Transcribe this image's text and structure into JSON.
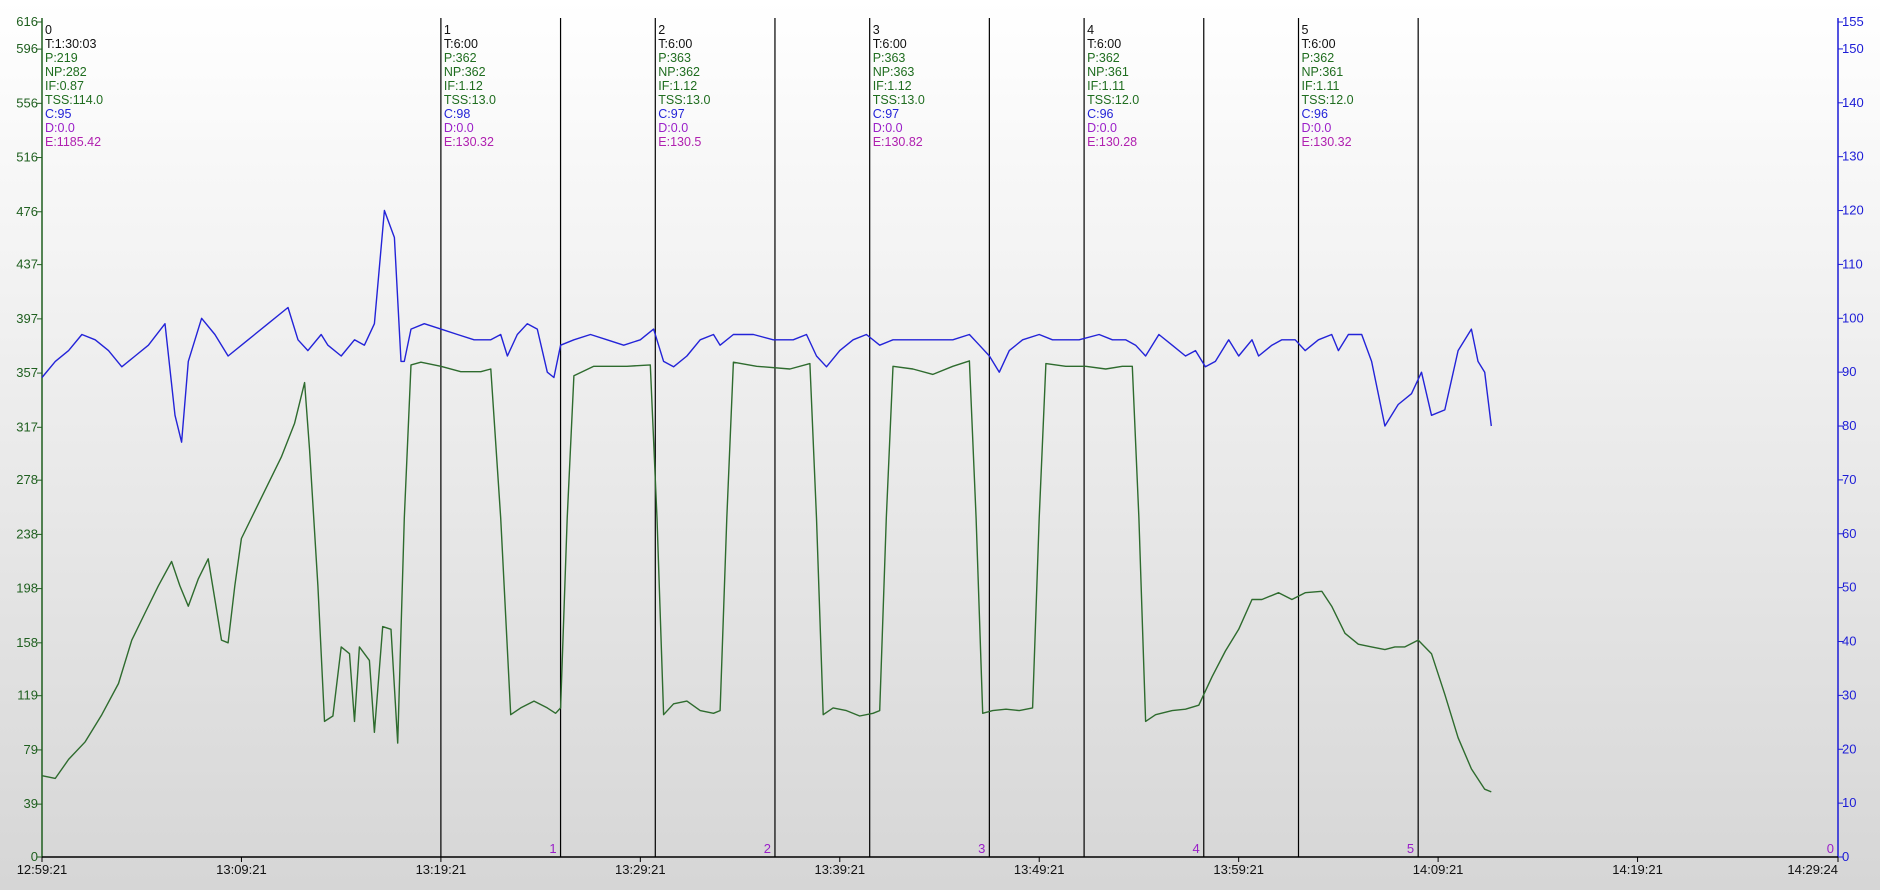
{
  "chart_data": {
    "type": "line",
    "title": "",
    "xlabel": "",
    "ylabel": "",
    "grid": false,
    "colors": {
      "power": "#2e6b2e",
      "cadence": "#2323d8",
      "marker": "#000000",
      "lap_number": "#9a1fc9",
      "speed_text": "#1f6d1f",
      "left_axis": "#1f5f1f",
      "right_axis": "#1c1cd6",
      "default_text": "#111111",
      "distance_text": "#9a1fc9",
      "energy_text": "#b020b0"
    },
    "x_axis": {
      "min_seconds": 0,
      "max_seconds": 5403,
      "tick_labels": [
        "12:59:21",
        "13:09:21",
        "13:19:21",
        "13:29:21",
        "13:39:21",
        "13:49:21",
        "13:59:21",
        "14:09:21",
        "14:19:21",
        "14:29:24"
      ],
      "tick_seconds": [
        0,
        600,
        1200,
        1800,
        2400,
        3000,
        3600,
        4200,
        4800,
        5403
      ]
    },
    "y_left": {
      "series": "Power",
      "range": [
        0,
        616
      ],
      "ticks": [
        0,
        39,
        79,
        119,
        158,
        198,
        238,
        278,
        317,
        357,
        397,
        437,
        476,
        516,
        556,
        596,
        616
      ]
    },
    "y_right": {
      "series": "Cadence",
      "range": [
        0,
        155
      ],
      "ticks": [
        0,
        10,
        20,
        30,
        40,
        50,
        60,
        70,
        80,
        90,
        100,
        110,
        120,
        130,
        140,
        150,
        155
      ]
    },
    "laps": [
      {
        "id": "0",
        "start": 0,
        "T": "T:1:30:03",
        "P": "P:219",
        "NP": "NP:282",
        "IF": "IF:0.87",
        "TSS": "TSS:114.0",
        "C": "C:95",
        "D": "D:0.0",
        "E": "E:1185.42"
      },
      {
        "id": "1",
        "start": 1200,
        "T": "T:6:00",
        "P": "P:362",
        "NP": "NP:362",
        "IF": "IF:1.12",
        "TSS": "TSS:13.0",
        "C": "C:98",
        "D": "D:0.0",
        "E": "E:130.32"
      },
      {
        "id": "2",
        "start": 1845,
        "T": "T:6:00",
        "P": "P:363",
        "NP": "NP:362",
        "IF": "IF:1.12",
        "TSS": "TSS:13.0",
        "C": "C:97",
        "D": "D:0.0",
        "E": "E:130.5"
      },
      {
        "id": "3",
        "start": 2490,
        "T": "T:6:00",
        "P": "P:363",
        "NP": "NP:363",
        "IF": "IF:1.12",
        "TSS": "TSS:13.0",
        "C": "C:97",
        "D": "D:0.0",
        "E": "E:130.82"
      },
      {
        "id": "4",
        "start": 3135,
        "T": "T:6:00",
        "P": "P:362",
        "NP": "NP:361",
        "IF": "IF:1.11",
        "TSS": "TSS:12.0",
        "C": "C:96",
        "D": "D:0.0",
        "E": "E:130.28"
      },
      {
        "id": "5",
        "start": 3780,
        "T": "T:6:00",
        "P": "P:362",
        "NP": "NP:361",
        "IF": "IF:1.11",
        "TSS": "TSS:12.0",
        "C": "C:96",
        "D": "D:0.0",
        "E": "E:130.32"
      }
    ],
    "lap_ends": [
      {
        "label": "1",
        "t": 1560
      },
      {
        "label": "2",
        "t": 2205
      },
      {
        "label": "3",
        "t": 2850
      },
      {
        "label": "4",
        "t": 3495
      },
      {
        "label": "5",
        "t": 4140
      },
      {
        "label": "0",
        "t": 5403
      }
    ],
    "series": [
      {
        "name": "Power",
        "axis": "left",
        "points": [
          [
            0,
            60
          ],
          [
            40,
            58
          ],
          [
            80,
            72
          ],
          [
            130,
            85
          ],
          [
            180,
            105
          ],
          [
            230,
            128
          ],
          [
            270,
            160
          ],
          [
            310,
            180
          ],
          [
            350,
            200
          ],
          [
            390,
            218
          ],
          [
            415,
            200
          ],
          [
            440,
            185
          ],
          [
            470,
            205
          ],
          [
            500,
            220
          ],
          [
            520,
            190
          ],
          [
            540,
            160
          ],
          [
            560,
            158
          ],
          [
            580,
            200
          ],
          [
            600,
            235
          ],
          [
            640,
            255
          ],
          [
            680,
            275
          ],
          [
            720,
            295
          ],
          [
            760,
            320
          ],
          [
            790,
            350
          ],
          [
            805,
            300
          ],
          [
            830,
            200
          ],
          [
            850,
            100
          ],
          [
            875,
            104
          ],
          [
            900,
            155
          ],
          [
            925,
            150
          ],
          [
            940,
            100
          ],
          [
            955,
            155
          ],
          [
            985,
            145
          ],
          [
            1000,
            92
          ],
          [
            1025,
            170
          ],
          [
            1050,
            168
          ],
          [
            1070,
            84
          ],
          [
            1090,
            250
          ],
          [
            1110,
            363
          ],
          [
            1140,
            365
          ],
          [
            1200,
            362
          ],
          [
            1260,
            358
          ],
          [
            1320,
            358
          ],
          [
            1350,
            360
          ],
          [
            1380,
            250
          ],
          [
            1410,
            105
          ],
          [
            1440,
            110
          ],
          [
            1480,
            115
          ],
          [
            1520,
            110
          ],
          [
            1545,
            106
          ],
          [
            1560,
            110
          ],
          [
            1580,
            250
          ],
          [
            1600,
            355
          ],
          [
            1660,
            362
          ],
          [
            1760,
            362
          ],
          [
            1830,
            363
          ],
          [
            1850,
            250
          ],
          [
            1870,
            105
          ],
          [
            1900,
            113
          ],
          [
            1940,
            115
          ],
          [
            1980,
            108
          ],
          [
            2020,
            106
          ],
          [
            2040,
            108
          ],
          [
            2060,
            250
          ],
          [
            2080,
            365
          ],
          [
            2150,
            362
          ],
          [
            2250,
            360
          ],
          [
            2310,
            364
          ],
          [
            2330,
            250
          ],
          [
            2350,
            105
          ],
          [
            2380,
            110
          ],
          [
            2420,
            108
          ],
          [
            2460,
            104
          ],
          [
            2500,
            106
          ],
          [
            2520,
            108
          ],
          [
            2540,
            250
          ],
          [
            2560,
            362
          ],
          [
            2620,
            360
          ],
          [
            2680,
            356
          ],
          [
            2740,
            362
          ],
          [
            2790,
            366
          ],
          [
            2810,
            250
          ],
          [
            2830,
            106
          ],
          [
            2860,
            108
          ],
          [
            2900,
            109
          ],
          [
            2940,
            108
          ],
          [
            2980,
            110
          ],
          [
            3000,
            250
          ],
          [
            3020,
            364
          ],
          [
            3080,
            362
          ],
          [
            3140,
            362
          ],
          [
            3200,
            360
          ],
          [
            3250,
            362
          ],
          [
            3280,
            362
          ],
          [
            3300,
            250
          ],
          [
            3320,
            100
          ],
          [
            3350,
            105
          ],
          [
            3400,
            108
          ],
          [
            3440,
            109
          ],
          [
            3480,
            112
          ],
          [
            3520,
            133
          ],
          [
            3560,
            152
          ],
          [
            3600,
            168
          ],
          [
            3640,
            190
          ],
          [
            3670,
            190
          ],
          [
            3720,
            195
          ],
          [
            3760,
            190
          ],
          [
            3800,
            195
          ],
          [
            3850,
            196
          ],
          [
            3880,
            185
          ],
          [
            3920,
            165
          ],
          [
            3960,
            157
          ],
          [
            4000,
            155
          ],
          [
            4040,
            153
          ],
          [
            4070,
            155
          ],
          [
            4100,
            155
          ],
          [
            4140,
            160
          ],
          [
            4180,
            150
          ],
          [
            4220,
            120
          ],
          [
            4260,
            88
          ],
          [
            4300,
            65
          ],
          [
            4340,
            50
          ],
          [
            4360,
            48
          ]
        ]
      },
      {
        "name": "Cadence",
        "axis": "right",
        "points": [
          [
            0,
            89
          ],
          [
            40,
            92
          ],
          [
            80,
            94
          ],
          [
            120,
            97
          ],
          [
            160,
            96
          ],
          [
            200,
            94
          ],
          [
            240,
            91
          ],
          [
            280,
            93
          ],
          [
            320,
            95
          ],
          [
            370,
            99
          ],
          [
            400,
            82
          ],
          [
            420,
            77
          ],
          [
            440,
            92
          ],
          [
            480,
            100
          ],
          [
            520,
            97
          ],
          [
            560,
            93
          ],
          [
            620,
            96
          ],
          [
            680,
            99
          ],
          [
            740,
            102
          ],
          [
            770,
            96
          ],
          [
            800,
            94
          ],
          [
            840,
            97
          ],
          [
            860,
            95
          ],
          [
            900,
            93
          ],
          [
            940,
            96
          ],
          [
            970,
            95
          ],
          [
            1000,
            99
          ],
          [
            1030,
            120
          ],
          [
            1060,
            115
          ],
          [
            1080,
            92
          ],
          [
            1090,
            92
          ],
          [
            1110,
            98
          ],
          [
            1150,
            99
          ],
          [
            1200,
            98
          ],
          [
            1250,
            97
          ],
          [
            1300,
            96
          ],
          [
            1350,
            96
          ],
          [
            1380,
            97
          ],
          [
            1400,
            93
          ],
          [
            1430,
            97
          ],
          [
            1460,
            99
          ],
          [
            1490,
            98
          ],
          [
            1520,
            90
          ],
          [
            1540,
            89
          ],
          [
            1560,
            95
          ],
          [
            1600,
            96
          ],
          [
            1650,
            97
          ],
          [
            1700,
            96
          ],
          [
            1750,
            95
          ],
          [
            1800,
            96
          ],
          [
            1840,
            98
          ],
          [
            1870,
            92
          ],
          [
            1900,
            91
          ],
          [
            1940,
            93
          ],
          [
            1980,
            96
          ],
          [
            2020,
            97
          ],
          [
            2040,
            95
          ],
          [
            2080,
            97
          ],
          [
            2140,
            97
          ],
          [
            2200,
            96
          ],
          [
            2260,
            96
          ],
          [
            2300,
            97
          ],
          [
            2330,
            93
          ],
          [
            2360,
            91
          ],
          [
            2400,
            94
          ],
          [
            2440,
            96
          ],
          [
            2480,
            97
          ],
          [
            2520,
            95
          ],
          [
            2560,
            96
          ],
          [
            2620,
            96
          ],
          [
            2680,
            96
          ],
          [
            2740,
            96
          ],
          [
            2790,
            97
          ],
          [
            2820,
            95
          ],
          [
            2850,
            93
          ],
          [
            2880,
            90
          ],
          [
            2910,
            94
          ],
          [
            2950,
            96
          ],
          [
            3000,
            97
          ],
          [
            3040,
            96
          ],
          [
            3080,
            96
          ],
          [
            3120,
            96
          ],
          [
            3180,
            97
          ],
          [
            3220,
            96
          ],
          [
            3260,
            96
          ],
          [
            3290,
            95
          ],
          [
            3320,
            93
          ],
          [
            3360,
            97
          ],
          [
            3400,
            95
          ],
          [
            3440,
            93
          ],
          [
            3470,
            94
          ],
          [
            3500,
            91
          ],
          [
            3530,
            92
          ],
          [
            3570,
            96
          ],
          [
            3600,
            93
          ],
          [
            3640,
            96
          ],
          [
            3660,
            93
          ],
          [
            3700,
            95
          ],
          [
            3730,
            96
          ],
          [
            3770,
            96
          ],
          [
            3800,
            94
          ],
          [
            3840,
            96
          ],
          [
            3880,
            97
          ],
          [
            3900,
            94
          ],
          [
            3930,
            97
          ],
          [
            3970,
            97
          ],
          [
            4000,
            92
          ],
          [
            4040,
            80
          ],
          [
            4080,
            84
          ],
          [
            4120,
            86
          ],
          [
            4150,
            90
          ],
          [
            4180,
            82
          ],
          [
            4220,
            83
          ],
          [
            4260,
            94
          ],
          [
            4300,
            98
          ],
          [
            4320,
            92
          ],
          [
            4340,
            90
          ],
          [
            4360,
            80
          ]
        ]
      }
    ]
  }
}
